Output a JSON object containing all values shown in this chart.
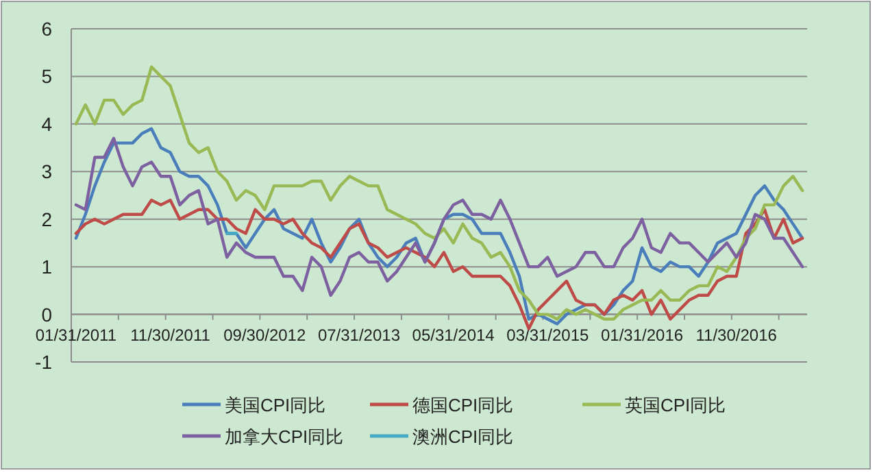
{
  "chart_data": {
    "type": "line",
    "categories": [
      "01/31/2011",
      null,
      null,
      null,
      null,
      null,
      null,
      null,
      null,
      null,
      "11/30/2011",
      null,
      null,
      null,
      null,
      null,
      null,
      null,
      null,
      null,
      "09/30/2012",
      null,
      null,
      null,
      null,
      null,
      null,
      null,
      null,
      null,
      "07/31/2013",
      null,
      null,
      null,
      null,
      null,
      null,
      null,
      null,
      null,
      "05/31/2014",
      null,
      null,
      null,
      null,
      null,
      null,
      null,
      null,
      null,
      "03/31/2015",
      null,
      null,
      null,
      null,
      null,
      null,
      null,
      null,
      null,
      "01/31/2016",
      null,
      null,
      null,
      null,
      null,
      null,
      null,
      null,
      null,
      "11/30/2016",
      null,
      null,
      null,
      null,
      null,
      null,
      null
    ],
    "series": [
      {
        "name": "美国CPI同比",
        "color": "#4a7ebb",
        "values": [
          1.6,
          2.1,
          2.7,
          3.2,
          3.6,
          3.6,
          3.6,
          3.8,
          3.9,
          3.5,
          3.4,
          3.0,
          2.9,
          2.9,
          2.7,
          2.3,
          1.7,
          1.7,
          1.4,
          1.7,
          2.0,
          2.2,
          1.8,
          1.7,
          1.6,
          2.0,
          1.5,
          1.1,
          1.4,
          1.8,
          2.0,
          1.5,
          1.2,
          1.0,
          1.2,
          1.5,
          1.6,
          1.1,
          1.5,
          2.0,
          2.1,
          2.1,
          2.0,
          1.7,
          1.7,
          1.7,
          1.3,
          0.8,
          -0.1,
          0.0,
          -0.1,
          -0.2,
          0.0,
          0.1,
          0.2,
          0.2,
          0.0,
          0.2,
          0.5,
          0.7,
          1.4,
          1.0,
          0.9,
          1.1,
          1.0,
          1.0,
          0.8,
          1.1,
          1.5,
          1.6,
          1.7,
          2.1,
          2.5,
          2.7,
          2.4,
          2.2,
          1.9,
          1.6
        ]
      },
      {
        "name": "德国CPI同比",
        "color": "#be4b48",
        "values": [
          1.7,
          1.9,
          2.0,
          1.9,
          2.0,
          2.1,
          2.1,
          2.1,
          2.4,
          2.3,
          2.4,
          2.0,
          2.1,
          2.2,
          2.2,
          2.0,
          2.0,
          1.8,
          1.7,
          2.2,
          2.0,
          2.0,
          1.9,
          2.0,
          1.7,
          1.5,
          1.4,
          1.2,
          1.5,
          1.8,
          1.9,
          1.5,
          1.4,
          1.2,
          1.3,
          1.4,
          1.3,
          1.2,
          1.0,
          1.3,
          0.9,
          1.0,
          0.8,
          0.8,
          0.8,
          0.8,
          0.6,
          0.2,
          -0.3,
          0.1,
          0.3,
          0.5,
          0.7,
          0.3,
          0.2,
          0.2,
          0.0,
          0.3,
          0.4,
          0.3,
          0.5,
          0.0,
          0.3,
          -0.1,
          0.1,
          0.3,
          0.4,
          0.4,
          0.7,
          0.8,
          0.8,
          1.7,
          1.9,
          2.2,
          1.6,
          2.0,
          1.5,
          1.6
        ]
      },
      {
        "name": "英国CPI同比",
        "color": "#98b954",
        "values": [
          4.0,
          4.4,
          4.0,
          4.5,
          4.5,
          4.2,
          4.4,
          4.5,
          5.2,
          5.0,
          4.8,
          4.2,
          3.6,
          3.4,
          3.5,
          3.0,
          2.8,
          2.4,
          2.6,
          2.5,
          2.2,
          2.7,
          2.7,
          2.7,
          2.7,
          2.8,
          2.8,
          2.4,
          2.7,
          2.9,
          2.8,
          2.7,
          2.7,
          2.2,
          2.1,
          2.0,
          1.9,
          1.7,
          1.6,
          1.8,
          1.5,
          1.9,
          1.6,
          1.5,
          1.2,
          1.3,
          1.0,
          0.5,
          0.3,
          0.0,
          0.0,
          -0.1,
          0.1,
          0.0,
          0.1,
          0.0,
          -0.1,
          -0.1,
          0.1,
          0.2,
          0.3,
          0.3,
          0.5,
          0.3,
          0.3,
          0.5,
          0.6,
          0.6,
          1.0,
          0.9,
          1.2,
          1.6,
          1.8,
          2.3,
          2.3,
          2.7,
          2.9,
          2.6
        ]
      },
      {
        "name": "加拿大CPI同比",
        "color": "#7d60a0",
        "values": [
          2.3,
          2.2,
          3.3,
          3.3,
          3.7,
          3.1,
          2.7,
          3.1,
          3.2,
          2.9,
          2.9,
          2.3,
          2.5,
          2.6,
          1.9,
          2.0,
          1.2,
          1.5,
          1.3,
          1.2,
          1.2,
          1.2,
          0.8,
          0.8,
          0.5,
          1.2,
          1.0,
          0.4,
          0.7,
          1.2,
          1.3,
          1.1,
          1.1,
          0.7,
          0.9,
          1.2,
          1.5,
          1.1,
          1.5,
          2.0,
          2.3,
          2.4,
          2.1,
          2.1,
          2.0,
          2.4,
          2.0,
          1.5,
          1.0,
          1.0,
          1.2,
          0.8,
          0.9,
          1.0,
          1.3,
          1.3,
          1.0,
          1.0,
          1.4,
          1.6,
          2.0,
          1.4,
          1.3,
          1.7,
          1.5,
          1.5,
          1.3,
          1.1,
          1.3,
          1.5,
          1.2,
          1.5,
          2.1,
          2.0,
          1.6,
          1.6,
          1.3,
          1.0
        ]
      },
      {
        "name": "澳洲CPI同比",
        "color": "#46aac5",
        "values": [
          null,
          null,
          null,
          null,
          null,
          null,
          null,
          null,
          null,
          null,
          null,
          null,
          null,
          null,
          null,
          null,
          1.7,
          1.7,
          null,
          null,
          null,
          null,
          null,
          null,
          null,
          null,
          null,
          null,
          null,
          null,
          null,
          null,
          null,
          null,
          null,
          null,
          null,
          null,
          null,
          null,
          null,
          null,
          null,
          null,
          null,
          null,
          null,
          null,
          null,
          null,
          null,
          null,
          null,
          null,
          null,
          null,
          null,
          null,
          null,
          null,
          null,
          null,
          null,
          null,
          null,
          null,
          null,
          null,
          null,
          null,
          null,
          null,
          null,
          null,
          null,
          null,
          null,
          null
        ]
      }
    ],
    "ylim": [
      -1,
      6
    ],
    "yticks": [
      -1,
      0,
      1,
      2,
      3,
      4,
      5,
      6
    ],
    "grid": "y",
    "legend": "bottom"
  }
}
